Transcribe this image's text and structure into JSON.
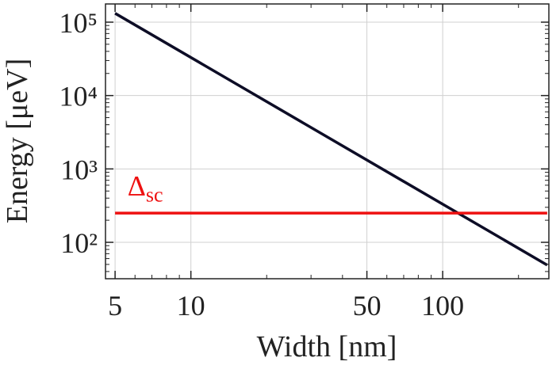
{
  "chart_data": {
    "type": "line",
    "xlabel": "Width [nm]",
    "ylabel": "Energy [μeV]",
    "xscale": "log",
    "yscale": "log",
    "xlim": [
      4.58,
      264
    ],
    "ylim": [
      31.9,
      177000
    ],
    "xticks": [
      5,
      10,
      50,
      100
    ],
    "xminorticks": [
      6,
      7,
      8,
      9,
      20,
      30,
      40,
      60,
      70,
      80,
      90,
      200
    ],
    "yticks": [
      {
        "value": 100,
        "label": "10²"
      },
      {
        "value": 1000,
        "label": "10³"
      },
      {
        "value": 10000,
        "label": "10⁴"
      },
      {
        "value": 100000,
        "label": "10⁵"
      }
    ],
    "yminorticks": [
      40,
      50,
      60,
      70,
      80,
      90,
      200,
      300,
      400,
      500,
      600,
      700,
      800,
      900,
      2000,
      3000,
      4000,
      5000,
      6000,
      7000,
      8000,
      9000,
      20000,
      30000,
      40000,
      50000,
      60000,
      70000,
      80000,
      90000
    ],
    "grid": true,
    "series": [
      {
        "color": "#0d0d26",
        "x": [
          5,
          260
        ],
        "values": [
          132000,
          49
        ]
      },
      {
        "color": "#ee1111",
        "x": [
          5,
          260
        ],
        "values": [
          250,
          250
        ]
      }
    ],
    "annotation": {
      "text": "Δ",
      "subscript": "sc",
      "color": "#ee1111",
      "x": 5.6,
      "y": 360
    }
  }
}
